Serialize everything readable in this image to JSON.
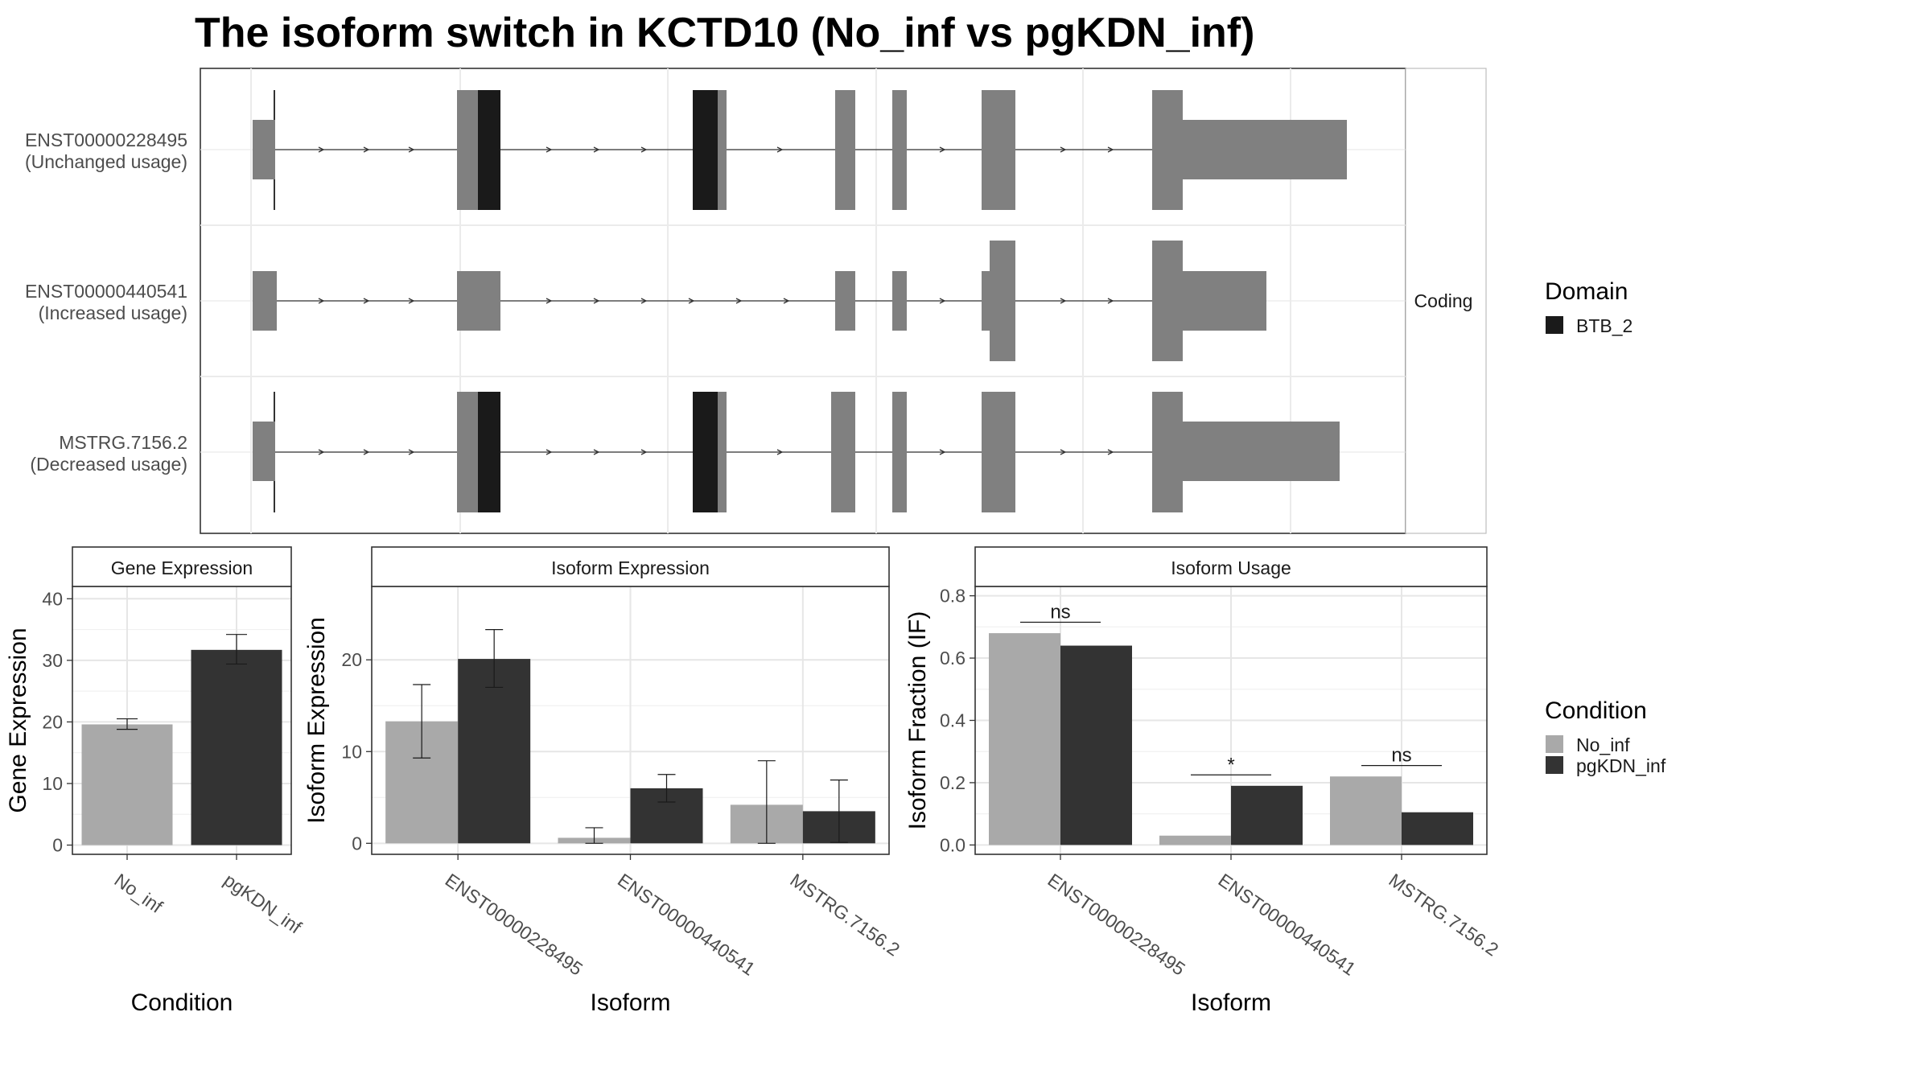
{
  "title": "The isoform switch in KCTD10 (No_inf vs pgKDN_inf)",
  "structure_panel": {
    "strip_label": "Coding",
    "isoforms": [
      {
        "id": "ENST00000228495",
        "usage_label": "(Unchanged usage)"
      },
      {
        "id": "ENST00000440541",
        "usage_label": "(Increased usage)"
      },
      {
        "id": "MSTRG.7156.2",
        "usage_label": "(Decreased usage)"
      }
    ]
  },
  "legends": {
    "domain": {
      "title": "Domain",
      "items": [
        {
          "label": "BTB_2",
          "color": "#1a1a1a"
        }
      ]
    },
    "condition": {
      "title": "Condition",
      "items": [
        {
          "label": "No_inf",
          "color": "#a9a9a9"
        },
        {
          "label": "pgKDN_inf",
          "color": "#333333"
        }
      ]
    }
  },
  "colors": {
    "utr_exon": "#808080",
    "domain": "#1a1a1a",
    "no_inf": "#a9a9a9",
    "pgkdn_inf": "#333333"
  },
  "chart_data": [
    {
      "type": "bar",
      "title": "Gene Expression",
      "xlabel": "Condition",
      "ylabel": "Gene Expression",
      "categories": [
        "No_inf",
        "pgKDN_inf"
      ],
      "values": [
        19.6,
        31.7
      ],
      "error_low": [
        18.8,
        29.4
      ],
      "error_high": [
        20.5,
        34.2
      ],
      "yticks": [
        0,
        10,
        20,
        30,
        40
      ],
      "ylim": [
        -1.5,
        42
      ]
    },
    {
      "type": "bar",
      "title": "Isoform Expression",
      "xlabel": "Isoform",
      "ylabel": "Isoform Expression",
      "categories": [
        "ENST00000228495",
        "ENST00000440541",
        "MSTRG.7156.2"
      ],
      "series": [
        {
          "name": "No_inf",
          "values": [
            13.3,
            0.6,
            4.2
          ],
          "error_low": [
            9.3,
            0.0,
            0.0
          ],
          "error_high": [
            17.3,
            1.7,
            9.0
          ]
        },
        {
          "name": "pgKDN_inf",
          "values": [
            20.1,
            6.0,
            3.5
          ],
          "error_low": [
            17.0,
            4.5,
            0.1
          ],
          "error_high": [
            23.3,
            7.5,
            6.9
          ]
        }
      ],
      "yticks": [
        0,
        10,
        20
      ],
      "ylim": [
        -1.2,
        28
      ]
    },
    {
      "type": "bar",
      "title": "Isoform Usage",
      "xlabel": "Isoform",
      "ylabel": "Isoform Fraction (IF)",
      "categories": [
        "ENST00000228495",
        "ENST00000440541",
        "MSTRG.7156.2"
      ],
      "series": [
        {
          "name": "No_inf",
          "values": [
            0.68,
            0.03,
            0.22
          ]
        },
        {
          "name": "pgKDN_inf",
          "values": [
            0.64,
            0.19,
            0.105
          ]
        }
      ],
      "significance": [
        "ns",
        "*",
        "ns"
      ],
      "significance_y": [
        0.715,
        0.225,
        0.255
      ],
      "yticks": [
        0.0,
        0.2,
        0.4,
        0.6,
        0.8
      ],
      "ylim": [
        -0.03,
        0.83
      ]
    }
  ]
}
